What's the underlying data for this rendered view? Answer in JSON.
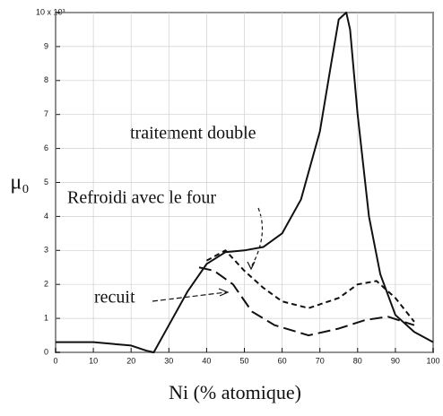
{
  "chart_data": {
    "type": "line",
    "ylabel": "μ₀",
    "xlabel": "Ni (% atomique)",
    "xlim": [
      0,
      100
    ],
    "xticks": [
      0,
      10,
      20,
      30,
      40,
      50,
      60,
      70,
      80,
      90,
      100
    ],
    "ylim": [
      0,
      10
    ],
    "yticks": [
      0,
      1,
      2,
      3,
      4,
      5,
      6,
      7,
      8,
      9,
      {
        "value": 10,
        "label": "10 x 10³"
      }
    ],
    "grid": true,
    "series": [
      {
        "name": "traitement double",
        "color": "#111111",
        "dash": "solid",
        "x": [
          0,
          10,
          20,
          24,
          26,
          30,
          35,
          40,
          45,
          50,
          55,
          60,
          65,
          70,
          73,
          75,
          77,
          78,
          80,
          83,
          86,
          90,
          95,
          100
        ],
        "values": [
          0.3,
          0.3,
          0.2,
          0.05,
          0,
          0.8,
          1.8,
          2.6,
          2.95,
          3.0,
          3.1,
          3.5,
          4.5,
          6.5,
          8.5,
          9.8,
          10.0,
          9.5,
          7,
          4,
          2.3,
          1.1,
          0.6,
          0.3
        ]
      },
      {
        "name": "Refroidi avec le four",
        "color": "#111111",
        "dash": "short",
        "x": [
          40,
          45,
          50,
          55,
          60,
          67,
          75,
          80,
          85,
          90,
          95
        ],
        "values": [
          2.7,
          3.0,
          2.4,
          1.9,
          1.5,
          1.3,
          1.6,
          2.0,
          2.1,
          1.6,
          0.9
        ]
      },
      {
        "name": "recuit",
        "color": "#111111",
        "dash": "long",
        "x": [
          38,
          42,
          47,
          52,
          58,
          67,
          75,
          82,
          88,
          95
        ],
        "values": [
          2.5,
          2.4,
          2.0,
          1.2,
          0.8,
          0.5,
          0.7,
          0.95,
          1.05,
          0.8
        ]
      }
    ]
  }
}
